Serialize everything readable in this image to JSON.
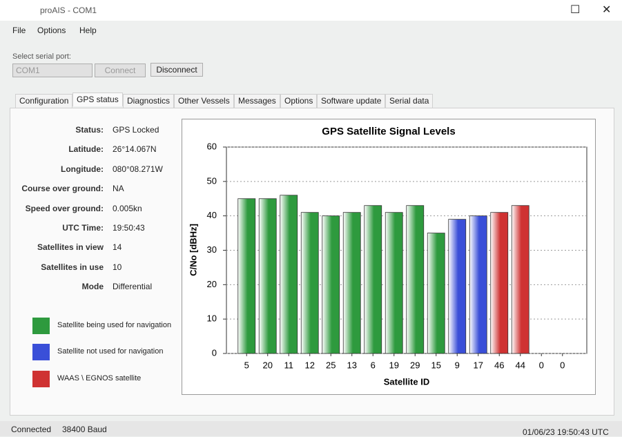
{
  "window": {
    "title": "proAIS - COM1"
  },
  "menu": [
    "File",
    "Options",
    "Help"
  ],
  "serial": {
    "label": "Select serial port:",
    "port": "COM1",
    "connect": "Connect",
    "disconnect": "Disconnect"
  },
  "tabs": [
    "Configuration",
    "GPS status",
    "Diagnostics",
    "Other Vessels",
    "Messages",
    "Options",
    "Software update",
    "Serial data"
  ],
  "fields": [
    {
      "label": "Status:",
      "value": "GPS Locked"
    },
    {
      "label": "Latitude:",
      "value": "26°14.067N"
    },
    {
      "label": "Longitude:",
      "value": "080°08.271W"
    },
    {
      "label": "Course over ground:",
      "value": "NA"
    },
    {
      "label": "Speed over ground:",
      "value": "0.005kn"
    },
    {
      "label": "UTC Time:",
      "value": "19:50:43"
    },
    {
      "label": "Satellites in view",
      "value": "14"
    },
    {
      "label": "Satellites in use",
      "value": "10"
    },
    {
      "label": "Mode",
      "value": "Differential"
    }
  ],
  "legend": [
    {
      "label": "Satellite being used for navigation",
      "color": "#2e9a3e"
    },
    {
      "label": "Satellite not used for navigation",
      "color": "#3a4fd8"
    },
    {
      "label": "WAAS \\ EGNOS satellite",
      "color": "#cf3232"
    }
  ],
  "chart_data": {
    "type": "bar",
    "title": "GPS Satellite Signal Levels",
    "x_label": "Satellite ID",
    "y_label": "C/No [dBHz]",
    "categories": [
      "5",
      "20",
      "11",
      "12",
      "25",
      "13",
      "6",
      "19",
      "29",
      "15",
      "9",
      "17",
      "46",
      "44",
      "0",
      "0"
    ],
    "values": [
      45,
      45,
      46,
      41,
      40,
      41,
      43,
      41,
      43,
      35,
      39,
      40,
      41,
      43,
      0,
      0
    ],
    "colors": [
      "#2e9a3e",
      "#2e9a3e",
      "#2e9a3e",
      "#2e9a3e",
      "#2e9a3e",
      "#2e9a3e",
      "#2e9a3e",
      "#2e9a3e",
      "#2e9a3e",
      "#2e9a3e",
      "#3a4fd8",
      "#3a4fd8",
      "#cf3232",
      "#cf3232",
      "#2e9a3e",
      "#2e9a3e"
    ],
    "ylim": [
      0,
      60
    ],
    "yticks": [
      0,
      10,
      20,
      30,
      40,
      50,
      60
    ],
    "grid": true
  },
  "status_bar": {
    "connection": "Connected",
    "baud": "38400 Baud",
    "time": "01/06/23 19:50:43 UTC"
  }
}
